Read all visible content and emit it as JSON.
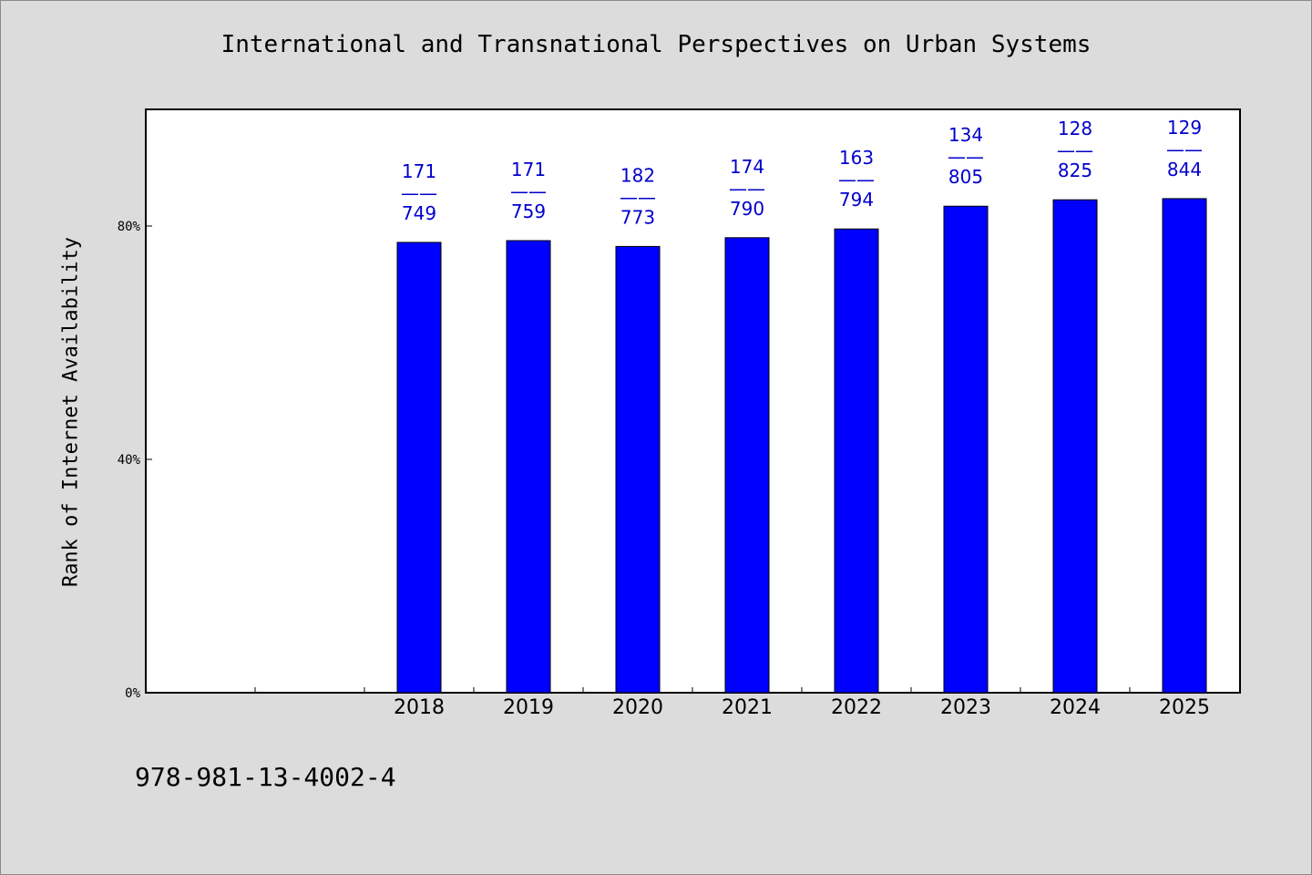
{
  "chart_data": {
    "type": "bar",
    "title": "International and Transnational Perspectives on Urban Systems",
    "ylabel": "Rank of Internet Availability",
    "xlabel": "",
    "categories": [
      "2018",
      "2019",
      "2020",
      "2021",
      "2022",
      "2023",
      "2024",
      "2025"
    ],
    "values": [
      77.2,
      77.5,
      76.5,
      78.0,
      79.5,
      83.4,
      84.5,
      84.7
    ],
    "ylim": [
      0,
      100
    ],
    "yticks": [
      {
        "value": 0,
        "label": "0%"
      },
      {
        "value": 40,
        "label": "40%"
      },
      {
        "value": 80,
        "label": "80%"
      }
    ],
    "data_labels": [
      {
        "top": "171",
        "sep": "——",
        "bottom": "749"
      },
      {
        "top": "171",
        "sep": "——",
        "bottom": "759"
      },
      {
        "top": "182",
        "sep": "——",
        "bottom": "773"
      },
      {
        "top": "174",
        "sep": "——",
        "bottom": "790"
      },
      {
        "top": "163",
        "sep": "——",
        "bottom": "794"
      },
      {
        "top": "134",
        "sep": "——",
        "bottom": "805"
      },
      {
        "top": "128",
        "sep": "——",
        "bottom": "825"
      },
      {
        "top": "129",
        "sep": "——",
        "bottom": "844"
      }
    ],
    "grid": false,
    "colors": {
      "bar": "#0000ff",
      "label": "#0000cc",
      "background": "#dcdcdc",
      "plot_background": "#ffffff"
    }
  },
  "footer": {
    "isbn": "978-981-13-4002-4"
  }
}
